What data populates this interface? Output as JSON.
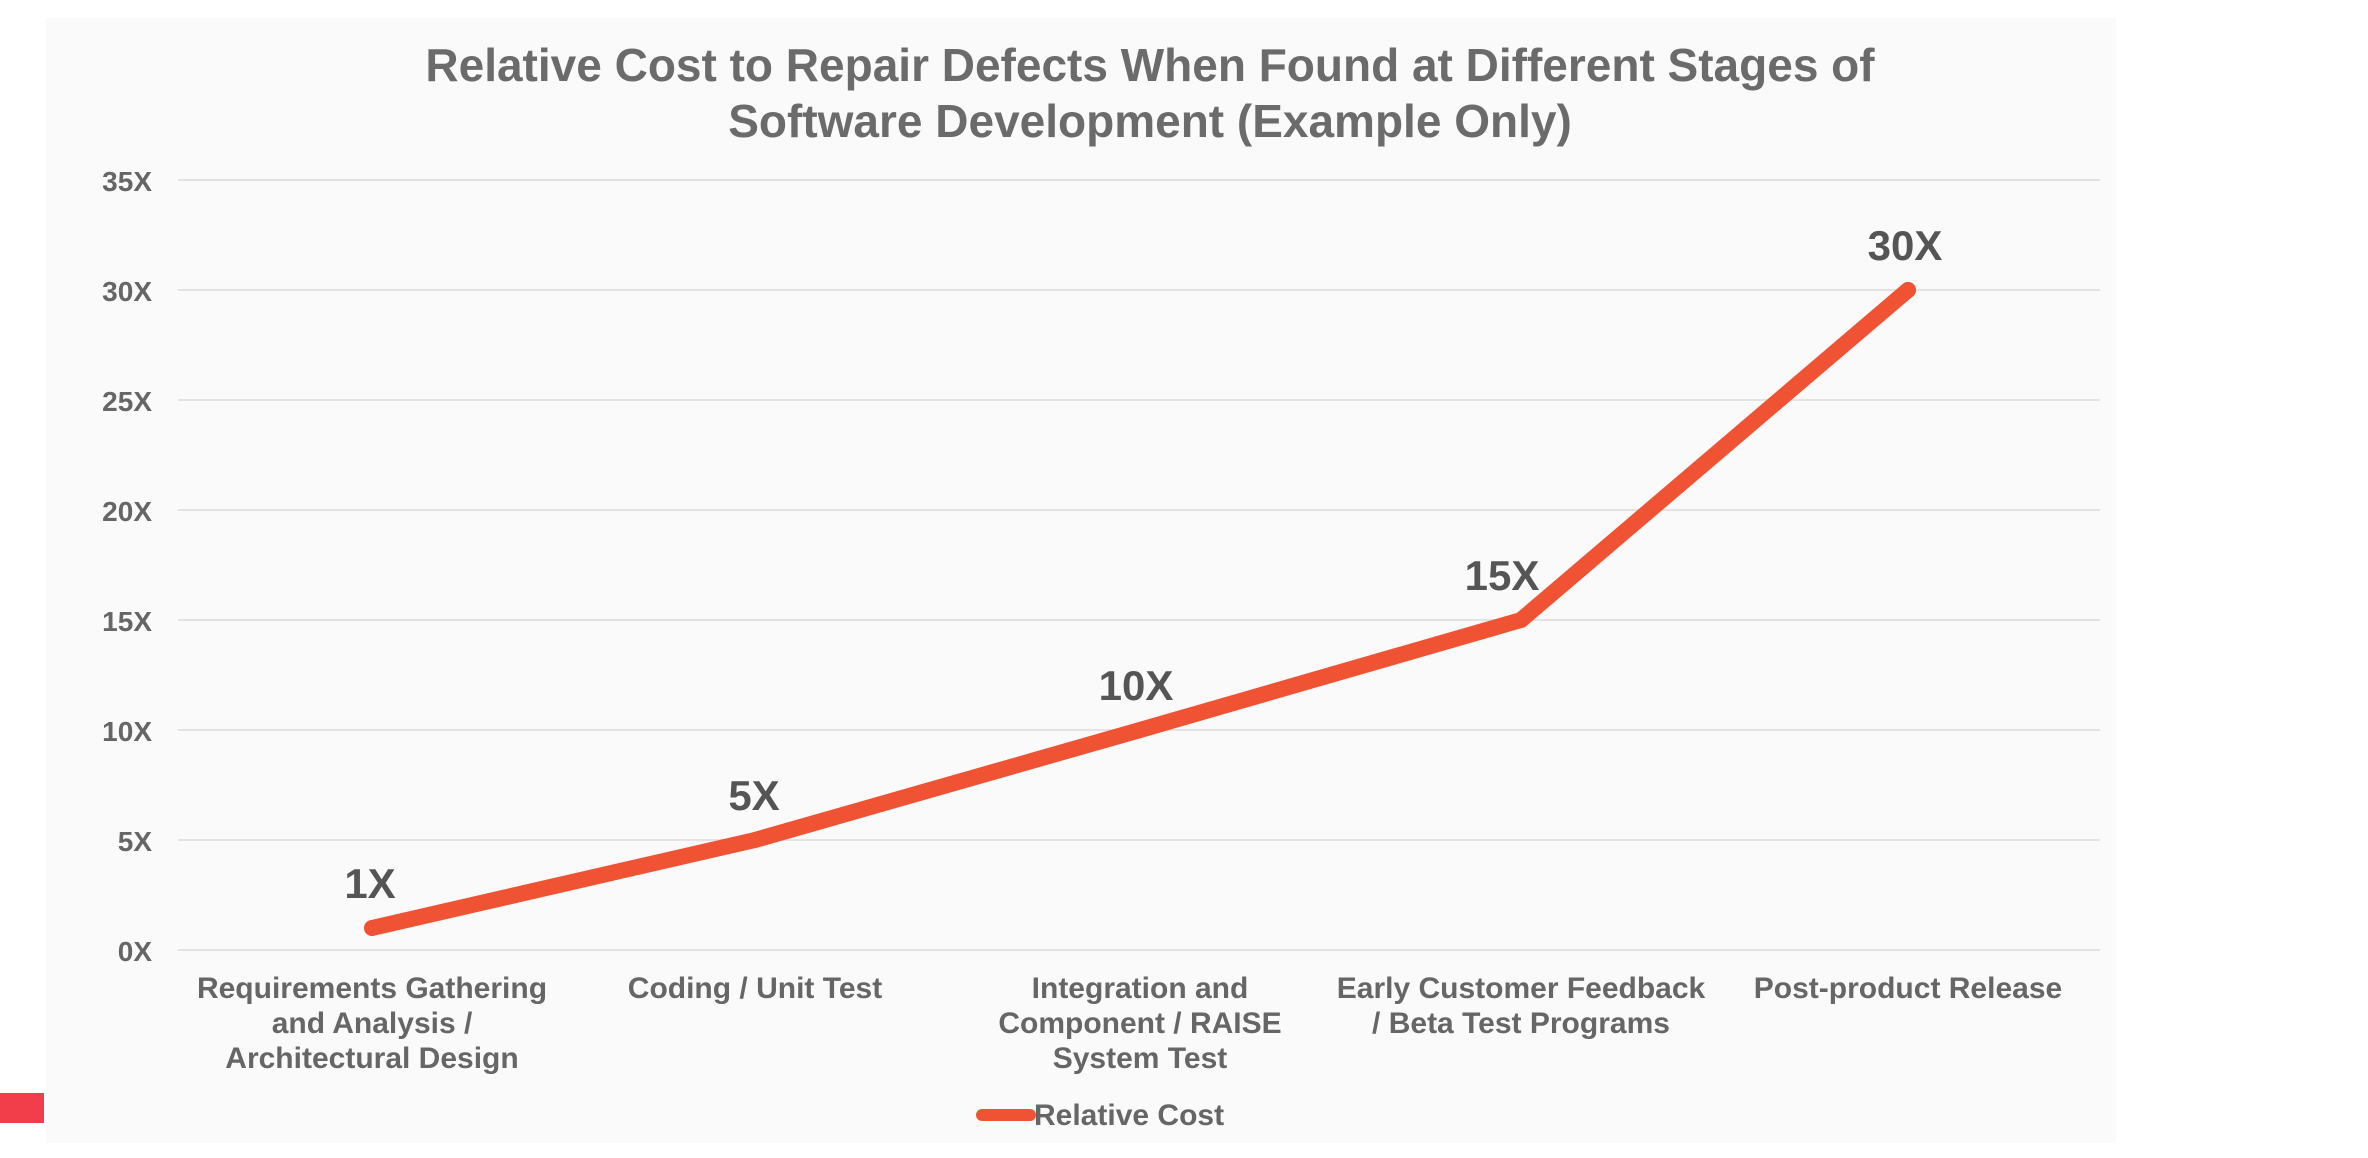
{
  "chart_data": {
    "type": "line",
    "title_lines": [
      "Relative Cost to Repair Defects When Found at Different Stages of",
      "Software Development (Example Only)"
    ],
    "categories": [
      [
        "Requirements Gathering",
        "and Analysis /",
        "Architectural Design"
      ],
      [
        "Coding / Unit Test"
      ],
      [
        "Integration and",
        "Component / RAISE",
        "System Test"
      ],
      [
        "Early Customer Feedback",
        "/ Beta Test Programs"
      ],
      [
        "Post-product Release"
      ]
    ],
    "series": [
      {
        "name": "Relative Cost",
        "values": [
          1,
          5,
          10,
          15,
          30
        ],
        "data_labels": [
          "1X",
          "5X",
          "10X",
          "15X",
          "30X"
        ],
        "color": "#ef5334"
      }
    ],
    "y_ticks": [
      0,
      5,
      10,
      15,
      20,
      25,
      30,
      35
    ],
    "y_tick_labels": [
      "0X",
      "5X",
      "10X",
      "15X",
      "20X",
      "25X",
      "30X",
      "35X"
    ],
    "ylim": [
      0,
      35
    ],
    "grid": true,
    "legend": "bottom-center"
  },
  "colors": {
    "accent_mark": "#f23d4a",
    "text": "#666666",
    "grid": "#e3e3e3"
  }
}
